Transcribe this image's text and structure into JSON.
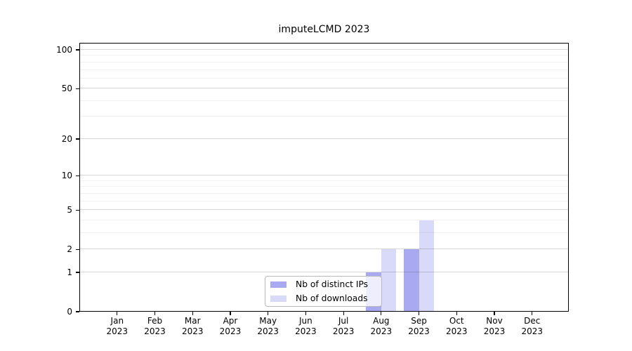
{
  "chart_data": {
    "type": "bar",
    "title": "imputeLCMD 2023",
    "x_axis": {
      "months": [
        "Jan",
        "Feb",
        "Mar",
        "Apr",
        "May",
        "Jun",
        "Jul",
        "Aug",
        "Sep",
        "Oct",
        "Nov",
        "Dec"
      ],
      "year": "2023"
    },
    "y_axis": {
      "scale": "log1p",
      "ticks": [
        0,
        1,
        2,
        5,
        10,
        20,
        50,
        100
      ],
      "minor_gridlines": [
        3,
        4,
        6,
        7,
        8,
        9,
        30,
        40,
        60,
        70,
        80,
        90
      ],
      "range": [
        0,
        100
      ]
    },
    "series": [
      {
        "name": "Nb of distinct IPs",
        "color": "#a9a9f2",
        "values": [
          0,
          0,
          0,
          0,
          0,
          0,
          0,
          1,
          2,
          0,
          0,
          0
        ]
      },
      {
        "name": "Nb of downloads",
        "color": "#d9d9f9",
        "values": [
          0,
          0,
          0,
          0,
          0,
          0,
          0,
          2,
          4,
          0,
          0,
          0
        ]
      }
    ],
    "legend": {
      "position": "inside-bottom-center",
      "entries": [
        "Nb of distinct IPs",
        "Nb of downloads"
      ]
    },
    "grid": {
      "orientation": "horizontal",
      "major": true,
      "minor": true
    }
  },
  "colors": {
    "background": "#ffffff",
    "axis": "#000000",
    "major_grid": "rgba(0,0,0,0.16)",
    "minor_grid": "rgba(0,0,0,0.055)",
    "legend_border": "#b9b9b9",
    "legend_background": "rgba(255,255,255,0.8)"
  }
}
